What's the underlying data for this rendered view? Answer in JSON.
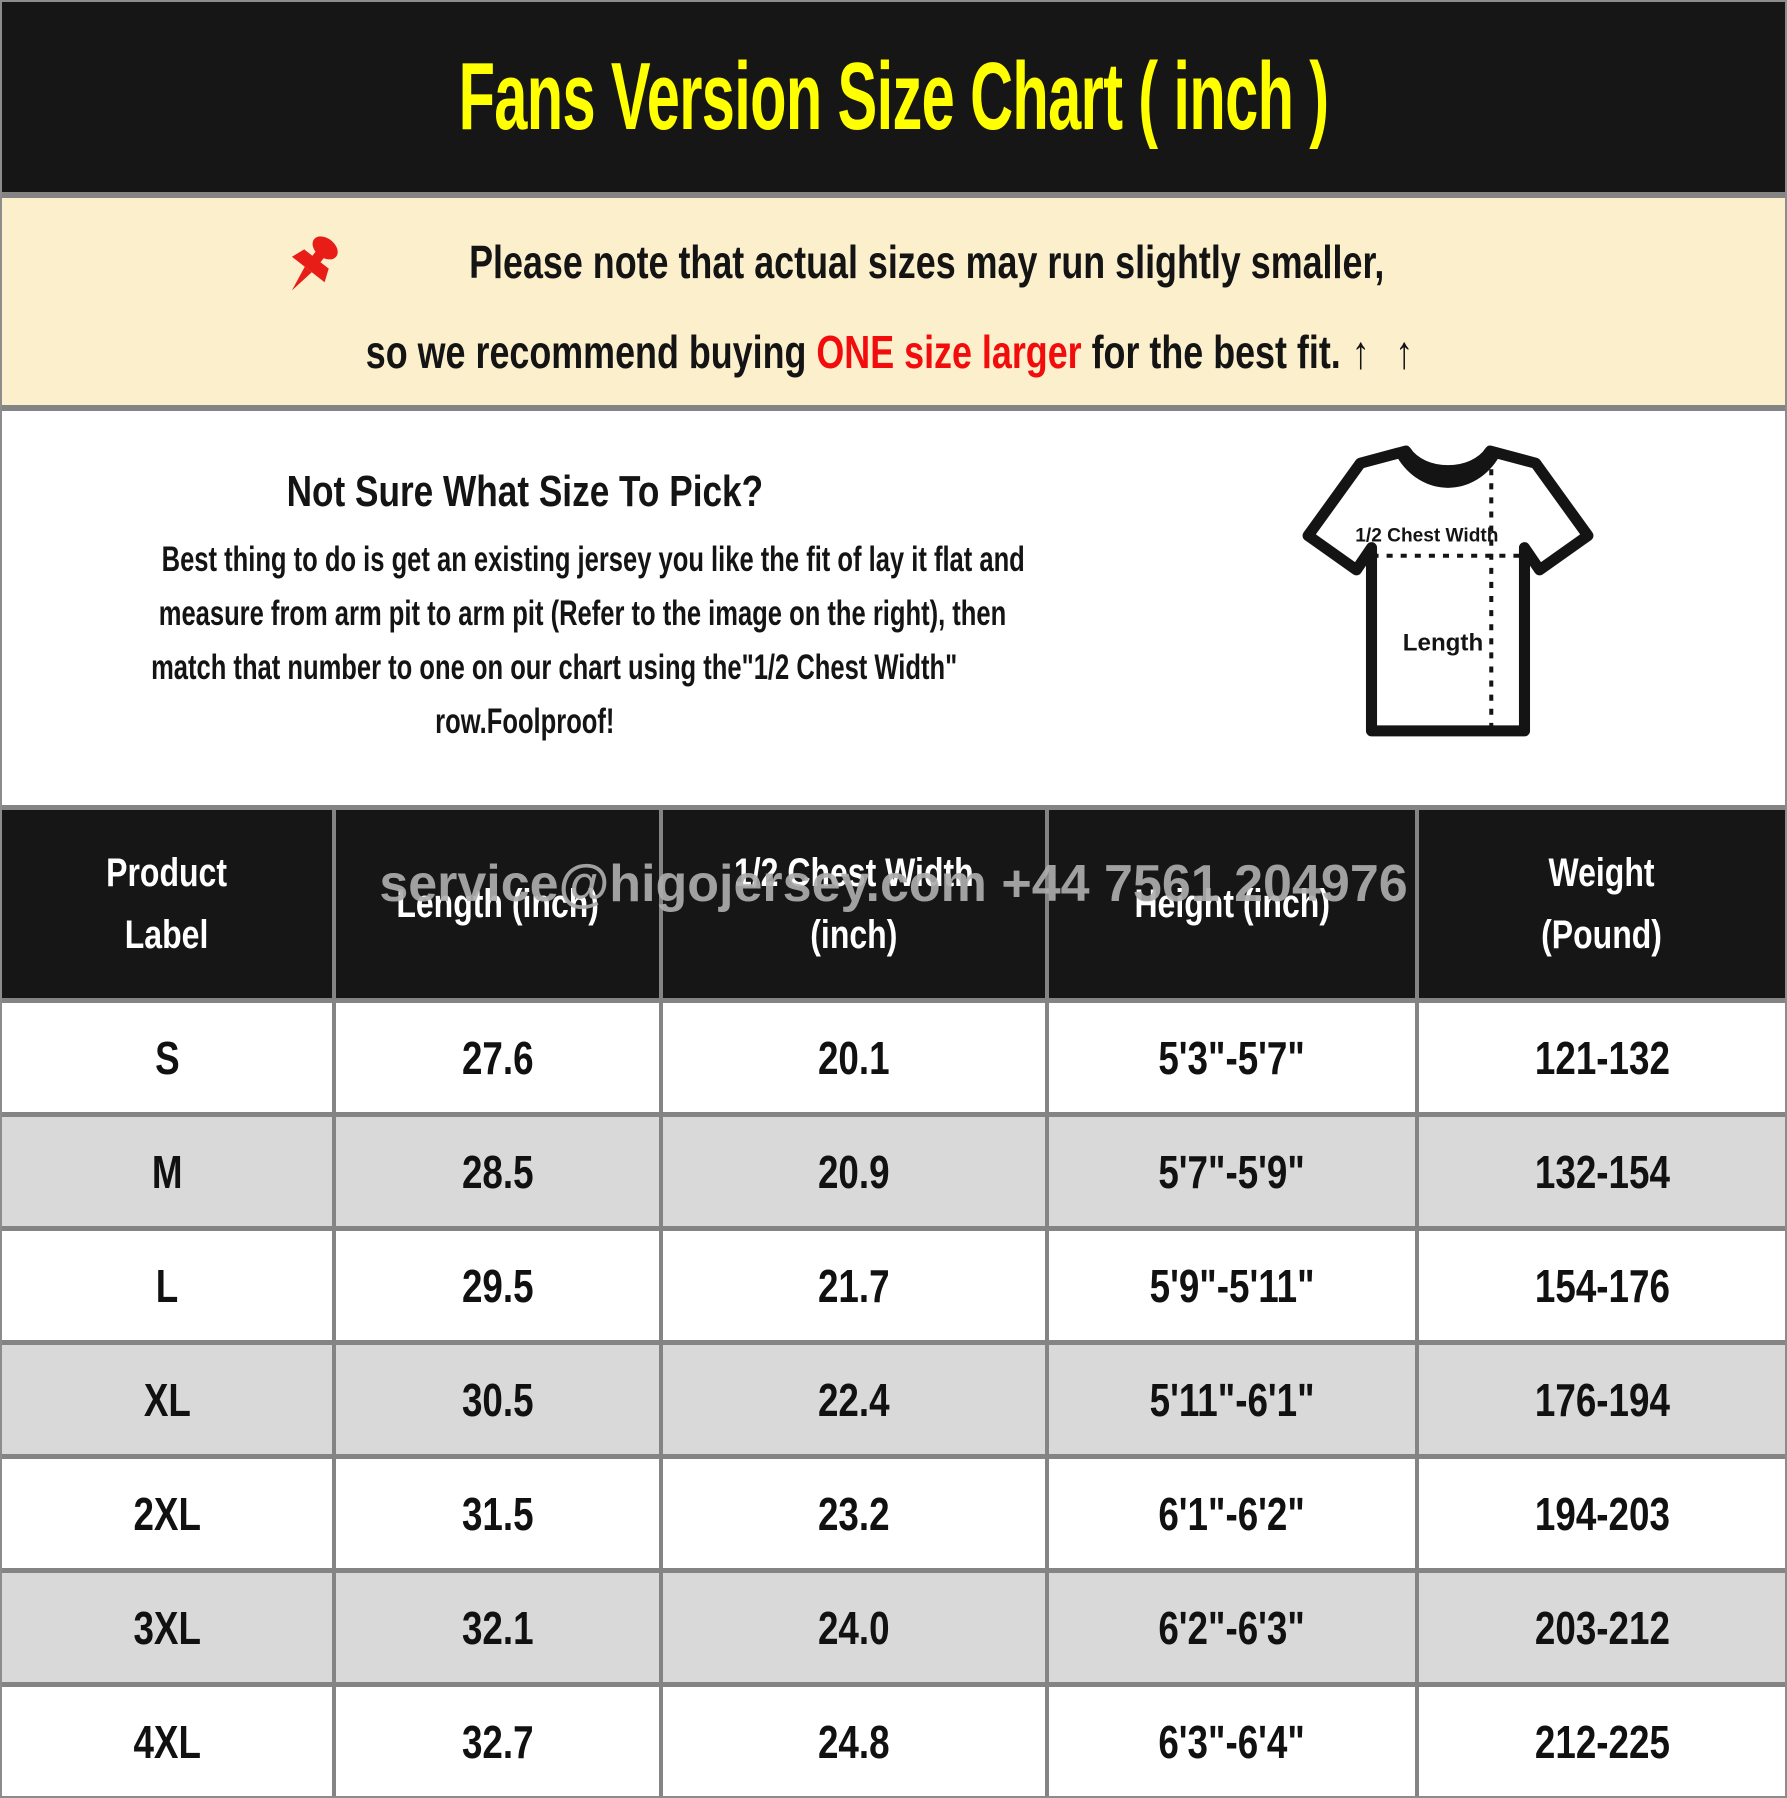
{
  "header": {
    "title": "Fans Version Size Chart ( inch )"
  },
  "note": {
    "pin_icon": "pushpin-icon",
    "line1": "Please note that actual sizes may run slightly smaller,",
    "line2_prefix": "so we recommend buying ",
    "line2_highlight": "ONE size larger",
    "line2_suffix": " for the best fit.",
    "arrows": "↑ ↑"
  },
  "guide": {
    "heading": "Not Sure What Size To Pick?",
    "lines": [
      "Best thing to do is get an existing jersey you like the fit of lay it flat and",
      "measure from arm pit to arm pit (Refer to the image on the right), then",
      "match that number to one on our chart using the\"1/2 Chest Width\"",
      "row.Foolproof!"
    ]
  },
  "diagram": {
    "icon": "tshirt-measure-icon",
    "chest_label": "1/2 Chest Width",
    "length_label": "Length"
  },
  "watermark": "service@higojersey.com +44 7561 204976",
  "table": {
    "columns": [
      "Product\nLabel",
      "Length (inch)",
      "1/2 Chest Width\n(inch)",
      "Height (inch)",
      "Weight\n(Pound)"
    ],
    "rows": [
      [
        "S",
        "27.6",
        "20.1",
        "5'3\"-5'7\"",
        "121-132"
      ],
      [
        "M",
        "28.5",
        "20.9",
        "5'7\"-5'9\"",
        "132-154"
      ],
      [
        "L",
        "29.5",
        "21.7",
        "5'9\"-5'11\"",
        "154-176"
      ],
      [
        "XL",
        "30.5",
        "22.4",
        "5'11\"-6'1\"",
        "176-194"
      ],
      [
        "2XL",
        "31.5",
        "23.2",
        "6'1\"-6'2\"",
        "194-203"
      ],
      [
        "3XL",
        "32.1",
        "24.0",
        "6'2\"-6'3\"",
        "203-212"
      ],
      [
        "4XL",
        "32.7",
        "24.8",
        "6'3\"-6'4\"",
        "212-225"
      ]
    ]
  },
  "chart_data": {
    "type": "table",
    "title": "Fans Version Size Chart ( inch )",
    "columns": [
      "Product Label",
      "Length (inch)",
      "1/2 Chest Width (inch)",
      "Height (inch)",
      "Weight (Pound)"
    ],
    "rows": [
      [
        "S",
        27.6,
        20.1,
        "5'3\"-5'7\"",
        "121-132"
      ],
      [
        "M",
        28.5,
        20.9,
        "5'7\"-5'9\"",
        "132-154"
      ],
      [
        "L",
        29.5,
        21.7,
        "5'9\"-5'11\"",
        "154-176"
      ],
      [
        "XL",
        30.5,
        22.4,
        "5'11\"-6'1\"",
        "176-194"
      ],
      [
        "2XL",
        31.5,
        23.2,
        "6'1\"-6'2\"",
        "194-203"
      ],
      [
        "3XL",
        32.1,
        24.0,
        "6'2\"-6'3\"",
        "203-212"
      ],
      [
        "4XL",
        32.7,
        24.8,
        "6'3\"-6'4\"",
        "212-225"
      ]
    ]
  },
  "colors": {
    "title_yellow": "#FFFF00",
    "header_black": "#161616",
    "note_cream": "#FBEFCC",
    "accent_red": "#F20C0C",
    "row_shade_gray": "#D9D9D9",
    "grid_line_gray": "#848484",
    "watermark_gray": "#ACACAC"
  }
}
